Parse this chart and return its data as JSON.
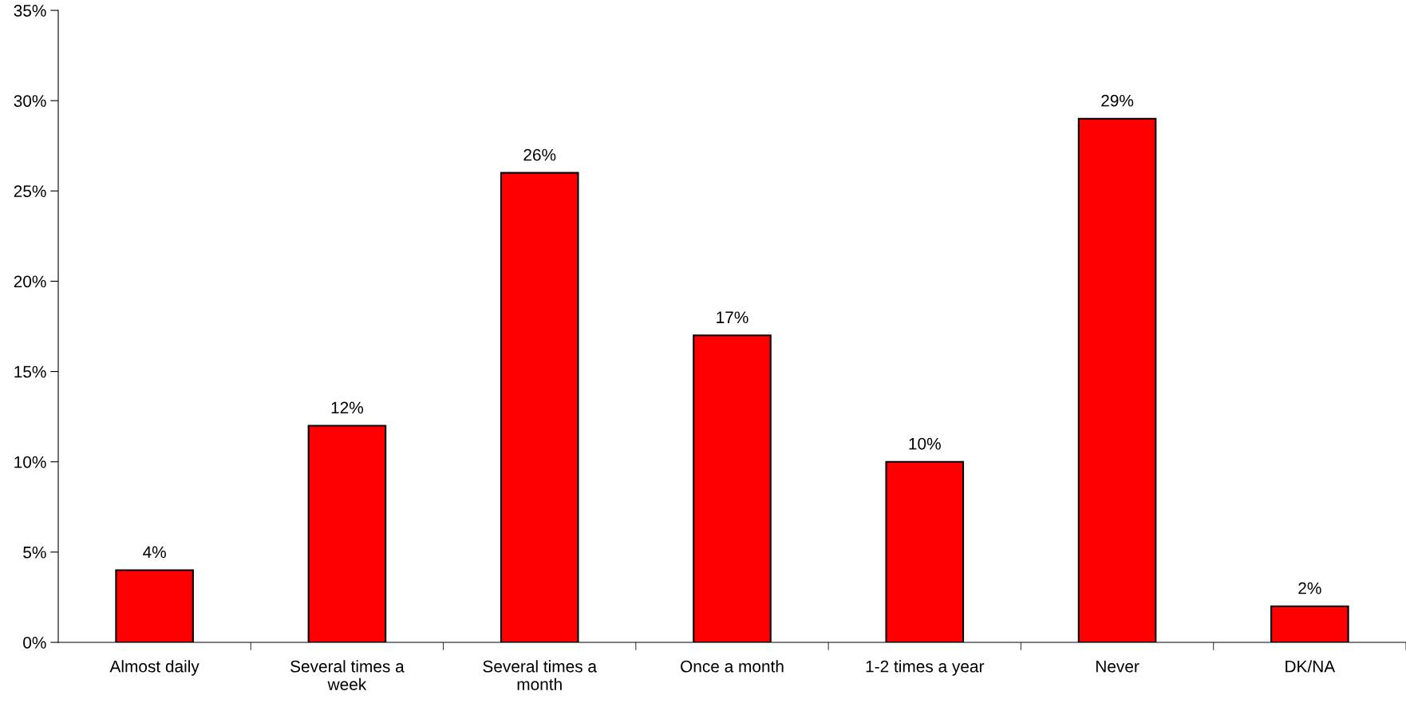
{
  "chart_data": {
    "type": "bar",
    "categories": [
      "Almost daily",
      "Several times a\nweek",
      "Several times a\nmonth",
      "Once a month",
      "1-2 times a year",
      "Never",
      "DK/NA"
    ],
    "values": [
      4,
      12,
      26,
      17,
      10,
      29,
      2
    ],
    "value_labels": [
      "4%",
      "12%",
      "26%",
      "17%",
      "10%",
      "29%",
      "2%"
    ],
    "color": "#ff0000",
    "ylim": [
      0,
      35
    ],
    "yticks": [
      {
        "value": 0,
        "label": "0%"
      },
      {
        "value": 5,
        "label": "5%"
      },
      {
        "value": 10,
        "label": "10%"
      },
      {
        "value": 15,
        "label": "15%"
      },
      {
        "value": 20,
        "label": "20%"
      },
      {
        "value": 25,
        "label": "25%"
      },
      {
        "value": 30,
        "label": "30%"
      },
      {
        "value": 35,
        "label": "35%"
      }
    ],
    "grid": false,
    "legend": false
  }
}
